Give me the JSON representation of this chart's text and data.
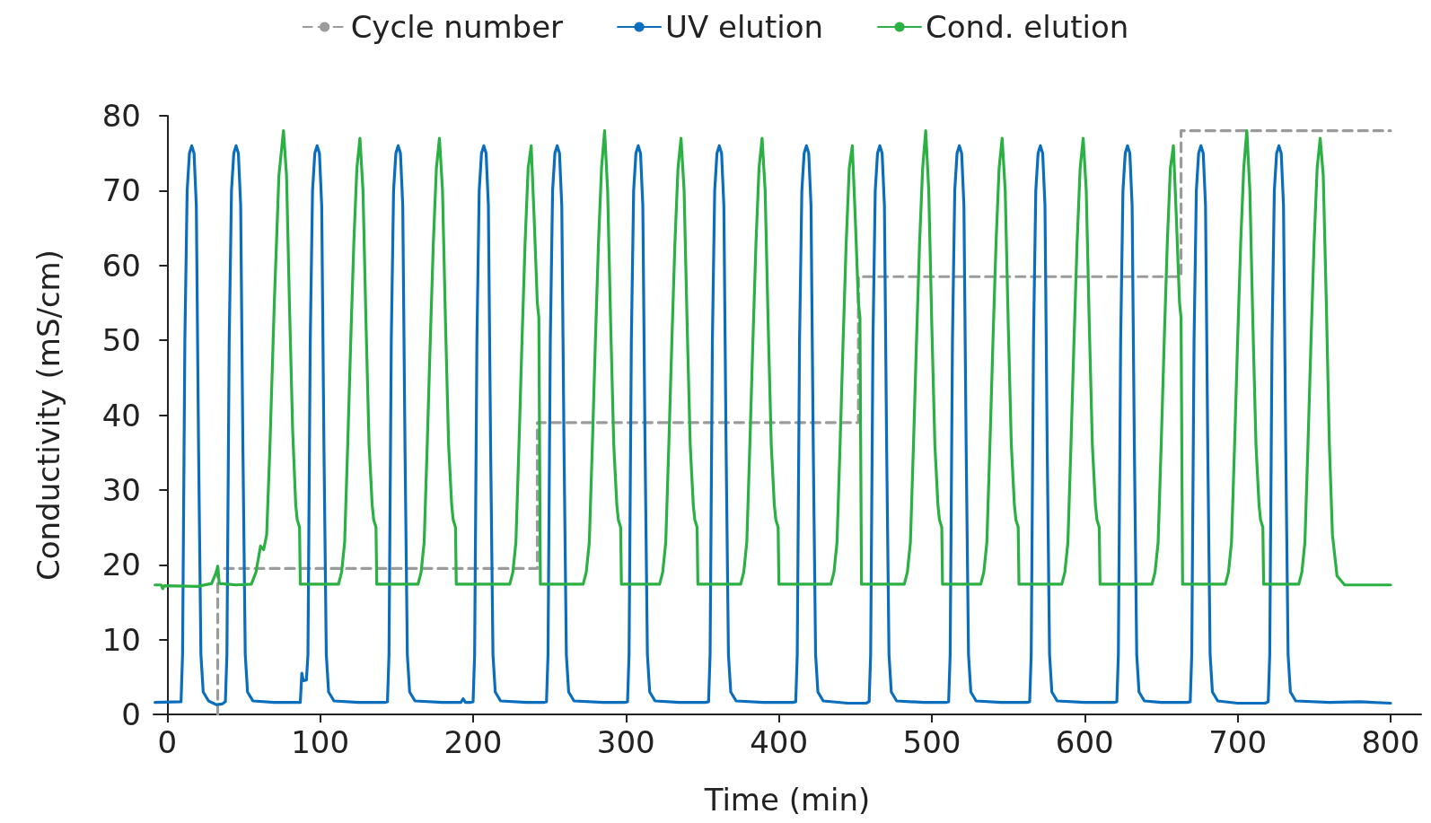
{
  "chart_data": {
    "type": "line",
    "xlabel": "Time (min)",
    "ylabel": "Conductivity (mS/cm)",
    "xlim": [
      -9,
      820
    ],
    "xticks": [
      0,
      100,
      200,
      300,
      400,
      500,
      600,
      700,
      800
    ],
    "ylim": [
      0,
      80
    ],
    "yticks": [
      0,
      10,
      20,
      30,
      40,
      50,
      60,
      70,
      80
    ],
    "grid": false,
    "legend": "top",
    "marker": "none",
    "series": [
      {
        "name": "Cycle number",
        "color": "#9b9b9b",
        "line_style": "dashed",
        "x": [
          33,
          33,
          242,
          242,
          452,
          452,
          663,
          663,
          800
        ],
        "values": [
          0,
          19.5,
          19.5,
          39,
          39,
          58.5,
          58.5,
          78,
          78
        ]
      },
      {
        "name": "UV elution",
        "color": "#0a6ebd",
        "line_style": "solid",
        "x": [
          -8,
          9,
          10,
          11.5,
          13,
          14.5,
          16,
          17.5,
          19,
          20.5,
          22,
          23.5,
          27,
          32,
          36,
          38,
          39,
          40.5,
          42,
          43.5,
          45,
          46.5,
          48,
          49.5,
          51,
          52.5,
          56,
          70,
          87,
          88,
          89,
          91,
          92,
          93.5,
          95,
          96.5,
          98,
          99.5,
          101,
          102.5,
          104,
          105.5,
          109,
          125,
          142,
          144,
          145,
          146.5,
          148,
          149.5,
          151,
          152.5,
          154,
          155.5,
          157,
          158.5,
          162,
          180,
          192,
          193.5,
          195,
          198,
          200,
          201,
          202.5,
          204,
          205.5,
          207,
          208.5,
          210,
          211.5,
          213,
          214.5,
          218,
          235,
          246,
          248,
          249,
          250.5,
          252,
          253.5,
          255,
          256.5,
          258,
          259.5,
          261,
          262.5,
          266,
          285,
          299,
          301,
          302,
          303.5,
          305,
          306.5,
          308,
          309.5,
          311,
          312.5,
          314,
          315.5,
          319,
          335,
          352,
          354,
          355,
          356.5,
          358,
          359.5,
          361,
          362.5,
          364,
          365.5,
          367,
          368.5,
          372,
          390,
          409,
          411,
          412,
          413.5,
          415,
          416.5,
          418,
          419.5,
          421,
          422.5,
          424,
          425.5,
          429,
          445,
          457,
          459,
          460,
          461.5,
          463,
          464.5,
          466,
          467.5,
          469,
          470.5,
          472,
          473.5,
          477,
          495,
          509,
          511,
          512,
          513.5,
          515,
          516.5,
          518,
          519.5,
          521,
          522.5,
          524,
          525.5,
          529,
          545,
          562,
          564,
          565,
          566.5,
          568,
          569.5,
          571,
          572.5,
          574,
          575.5,
          577,
          578.5,
          582,
          600,
          619,
          621,
          622,
          623.5,
          625,
          626.5,
          628,
          629.5,
          631,
          632.5,
          634,
          635.5,
          639,
          650,
          667,
          669,
          670,
          671.5,
          673,
          674.5,
          676,
          677.5,
          679,
          680.5,
          682,
          683.5,
          687,
          700,
          718,
          720,
          721,
          722.5,
          724,
          725.5,
          727,
          728.5,
          730,
          731.5,
          733,
          734.5,
          738,
          760,
          780,
          800
        ],
        "values": [
          1.6,
          1.7,
          8,
          50,
          70,
          75,
          76,
          75,
          68,
          35,
          8,
          3,
          1.8,
          1.3,
          1.4,
          1.7,
          8,
          50,
          70,
          75,
          76,
          75,
          68,
          35,
          8,
          3,
          1.8,
          1.6,
          1.6,
          5.5,
          4.5,
          4.6,
          8,
          50,
          70,
          75,
          76,
          75,
          68,
          35,
          8,
          3,
          1.8,
          1.6,
          1.6,
          1.7,
          8,
          50,
          70,
          75,
          76,
          75,
          68,
          35,
          8,
          3,
          1.8,
          1.6,
          1.6,
          2.1,
          1.6,
          1.6,
          1.7,
          8,
          50,
          70,
          75,
          76,
          75,
          68,
          35,
          8,
          3,
          1.8,
          1.6,
          1.6,
          1.7,
          8,
          50,
          70,
          75,
          76,
          75,
          68,
          35,
          8,
          3,
          1.8,
          1.6,
          1.6,
          1.7,
          8,
          50,
          70,
          75,
          76,
          75,
          68,
          35,
          8,
          3,
          1.8,
          1.6,
          1.6,
          1.7,
          8,
          50,
          70,
          75,
          76,
          75,
          68,
          35,
          8,
          3,
          1.8,
          1.6,
          1.6,
          1.7,
          8,
          50,
          70,
          75,
          76,
          75,
          68,
          35,
          8,
          3,
          1.8,
          1.5,
          1.5,
          1.7,
          8,
          50,
          70,
          75,
          76,
          75,
          68,
          35,
          8,
          3,
          1.8,
          1.6,
          1.6,
          1.7,
          8,
          50,
          70,
          75,
          76,
          75,
          68,
          35,
          8,
          3,
          1.8,
          1.6,
          1.6,
          1.7,
          8,
          50,
          70,
          75,
          76,
          75,
          68,
          35,
          8,
          3,
          1.8,
          1.6,
          1.6,
          1.7,
          8,
          50,
          70,
          75,
          76,
          75,
          68,
          35,
          8,
          3,
          1.8,
          1.6,
          1.6,
          1.7,
          8,
          50,
          70,
          75,
          76,
          75,
          68,
          35,
          8,
          3,
          1.8,
          1.5,
          1.5,
          1.7,
          8,
          50,
          70,
          75,
          76,
          75,
          68,
          35,
          8,
          3,
          1.8,
          1.6,
          1.7,
          1.5
        ]
      },
      {
        "name": "Cond. elution",
        "color": "#2bb043",
        "line_style": "solid",
        "x": [
          -8,
          -4,
          -3,
          -2,
          20,
          29,
          32,
          33,
          34,
          45,
          55,
          58,
          61,
          63,
          65,
          67,
          70,
          73,
          76,
          78,
          80,
          82,
          84,
          85,
          86.5,
          87,
          112,
          114,
          116,
          118,
          120,
          122,
          124,
          126,
          128,
          130,
          132,
          134,
          135,
          136.5,
          137,
          164,
          166,
          168,
          170,
          172,
          174,
          176,
          178,
          180,
          182,
          184,
          186,
          187,
          188.5,
          189,
          224,
          226,
          228,
          230,
          232,
          234,
          236,
          238,
          240,
          242,
          243,
          244,
          272,
          274,
          276,
          278,
          280,
          282,
          284,
          286,
          288,
          290,
          292,
          294,
          295,
          296.5,
          297,
          322,
          324,
          326,
          328,
          330,
          332,
          334,
          336,
          338,
          340,
          342,
          344,
          345,
          346.5,
          347,
          375,
          377,
          379,
          381,
          383,
          385,
          387,
          389,
          391,
          393,
          395,
          397,
          398,
          399.5,
          400,
          434,
          436,
          438,
          440,
          442,
          444,
          446,
          448,
          450,
          452,
          453,
          454,
          482,
          484,
          486,
          488,
          490,
          492,
          494,
          496,
          498,
          500,
          502,
          504,
          505,
          506.5,
          507,
          532,
          534,
          536,
          538,
          540,
          542,
          544,
          546,
          548,
          550,
          552,
          554,
          555,
          556.5,
          557,
          585,
          587,
          589,
          591,
          593,
          595,
          597,
          599,
          601,
          603,
          605,
          607,
          608,
          609.5,
          610,
          644,
          646,
          648,
          650,
          652,
          654,
          656,
          658,
          660,
          662,
          663,
          664,
          692,
          694,
          696,
          698,
          700,
          702,
          704,
          706,
          708,
          710,
          712,
          714,
          715,
          716.5,
          717,
          740,
          742,
          744,
          746,
          748,
          750,
          752,
          754,
          756,
          758,
          760,
          762,
          765,
          770,
          800
        ],
        "values": [
          17.3,
          17.3,
          16.8,
          17.2,
          17.1,
          17.5,
          19,
          19.8,
          17.5,
          17.3,
          17.4,
          19,
          22.5,
          22,
          24,
          35,
          55,
          72,
          78,
          72,
          54,
          38,
          28,
          26,
          25,
          17.4,
          17.4,
          19,
          23,
          36,
          50,
          63,
          73,
          77,
          70,
          52,
          36,
          28,
          26,
          25,
          17.4,
          17.4,
          19,
          23,
          36,
          50,
          63,
          73,
          77,
          70,
          52,
          36,
          28,
          26,
          25,
          17.4,
          17.4,
          19,
          23,
          36,
          50,
          63,
          73,
          76,
          66,
          55,
          53,
          17.4,
          17.4,
          19,
          23,
          36,
          50,
          63,
          73,
          78,
          70,
          52,
          36,
          28,
          26,
          25,
          17.4,
          17.4,
          19,
          23,
          36,
          50,
          63,
          73,
          77,
          70,
          52,
          36,
          28,
          26,
          25,
          17.4,
          17.4,
          19,
          23,
          36,
          50,
          63,
          73,
          77,
          70,
          52,
          36,
          28,
          26,
          25,
          17.4,
          17.4,
          19,
          23,
          36,
          50,
          63,
          73,
          76,
          66,
          55,
          53,
          17.4,
          17.4,
          19,
          23,
          36,
          50,
          63,
          73,
          78,
          70,
          52,
          36,
          28,
          26,
          25,
          17.4,
          17.4,
          19,
          23,
          36,
          50,
          63,
          73,
          77,
          70,
          52,
          36,
          28,
          26,
          25,
          17.4,
          17.4,
          19,
          23,
          36,
          50,
          63,
          73,
          77,
          70,
          52,
          36,
          28,
          26,
          25,
          17.4,
          17.4,
          19,
          23,
          36,
          50,
          63,
          73,
          76,
          66,
          55,
          53,
          17.4,
          17.4,
          19,
          23,
          36,
          50,
          63,
          73,
          78,
          70,
          52,
          36,
          28,
          26,
          25,
          17.4,
          17.4,
          19,
          23,
          36,
          50,
          63,
          73,
          77,
          72,
          55,
          36,
          24,
          18.5,
          17.3,
          17.3
        ]
      }
    ]
  }
}
